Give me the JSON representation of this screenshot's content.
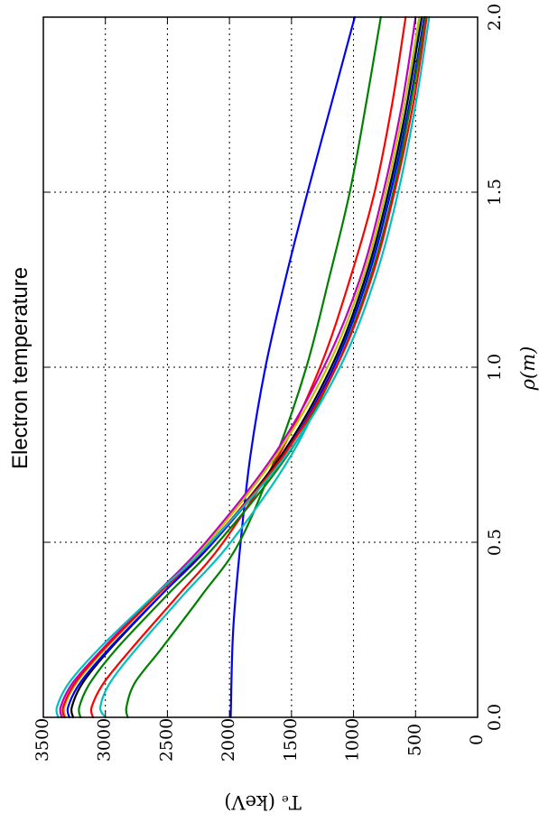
{
  "chart_data": {
    "type": "line",
    "title": "Electron temperature",
    "xlabel": "ρ(m)",
    "ylabel": "Tₑ (keV)",
    "xlim": [
      0.0,
      2.0
    ],
    "ylim": [
      0,
      3500
    ],
    "xticks": [
      "0.0",
      "0.5",
      "1.0",
      "1.5",
      "2.0"
    ],
    "yticks": [
      "0",
      "500",
      "1000",
      "1500",
      "2000",
      "2500",
      "3000",
      "3500"
    ],
    "grid": true,
    "orientation": "rotated 90° clockwise",
    "series": [
      {
        "color": "#0000ff",
        "x": [
          0.0,
          0.25,
          0.5,
          0.75,
          1.0,
          1.25,
          1.5,
          1.75,
          2.0
        ],
        "y": [
          1990,
          1970,
          1910,
          1830,
          1710,
          1550,
          1370,
          1180,
          990
        ]
      },
      {
        "color": "#008000",
        "x": [
          0.0,
          0.03,
          0.1,
          0.2,
          0.35,
          0.5,
          0.75,
          1.0,
          1.25,
          1.5,
          1.75,
          2.0
        ],
        "y": [
          2820,
          2830,
          2760,
          2540,
          2220,
          1920,
          1620,
          1380,
          1200,
          1030,
          900,
          780
        ]
      },
      {
        "color": "#ff0000",
        "x": [
          0.0,
          0.03,
          0.1,
          0.2,
          0.35,
          0.5,
          0.75,
          1.0,
          1.25,
          1.5,
          1.75,
          2.0
        ],
        "y": [
          3100,
          3110,
          3010,
          2780,
          2410,
          2050,
          1600,
          1270,
          1030,
          830,
          690,
          580
        ]
      },
      {
        "color": "#00bfbf",
        "x": [
          0.0,
          0.03,
          0.1,
          0.2,
          0.35,
          0.5,
          0.75,
          1.0,
          1.25,
          1.5,
          1.75,
          2.0
        ],
        "y": [
          3000,
          3040,
          2960,
          2740,
          2370,
          1990,
          1500,
          1160,
          900,
          710,
          570,
          470
        ]
      },
      {
        "color": "#bf00bf",
        "x": [
          0.0,
          0.03,
          0.1,
          0.2,
          0.35,
          0.5,
          0.75,
          1.0,
          1.25,
          1.5,
          1.75,
          2.0
        ],
        "y": [
          3350,
          3360,
          3260,
          3010,
          2600,
          2190,
          1640,
          1240,
          950,
          760,
          610,
          500
        ]
      },
      {
        "color": "#bfbf00",
        "x": [
          0.0,
          0.03,
          0.1,
          0.2,
          0.35,
          0.5,
          0.75,
          1.0,
          1.25,
          1.5,
          1.75,
          2.0
        ],
        "y": [
          3320,
          3330,
          3230,
          2990,
          2580,
          2170,
          1620,
          1210,
          930,
          740,
          590,
          470
        ]
      },
      {
        "color": "#000000",
        "x": [
          0.0,
          0.03,
          0.1,
          0.2,
          0.35,
          0.5,
          0.75,
          1.0,
          1.25,
          1.5,
          1.75,
          2.0
        ],
        "y": [
          3260,
          3270,
          3180,
          2950,
          2550,
          2140,
          1580,
          1180,
          910,
          720,
          570,
          450
        ]
      },
      {
        "color": "#0000ff",
        "x": [
          0.0,
          0.03,
          0.1,
          0.2,
          0.35,
          0.5,
          0.75,
          1.0,
          1.25,
          1.5,
          1.75,
          2.0
        ],
        "y": [
          3290,
          3300,
          3200,
          2960,
          2550,
          2130,
          1560,
          1160,
          890,
          700,
          550,
          430
        ]
      },
      {
        "color": "#008000",
        "x": [
          0.0,
          0.03,
          0.1,
          0.2,
          0.35,
          0.5,
          0.75,
          1.0,
          1.25,
          1.5,
          1.75,
          2.0
        ],
        "y": [
          3200,
          3210,
          3120,
          2900,
          2500,
          2090,
          1530,
          1140,
          870,
          680,
          540,
          420
        ]
      },
      {
        "color": "#ff0000",
        "x": [
          0.0,
          0.03,
          0.1,
          0.2,
          0.35,
          0.5,
          0.75,
          1.0,
          1.25,
          1.5,
          1.75,
          2.0
        ],
        "y": [
          3330,
          3340,
          3240,
          3000,
          2580,
          2150,
          1560,
          1140,
          860,
          670,
          520,
          410
        ]
      },
      {
        "color": "#00bfbf",
        "x": [
          0.0,
          0.03,
          0.1,
          0.2,
          0.35,
          0.5,
          0.75,
          1.0,
          1.25,
          1.5,
          1.75,
          2.0
        ],
        "y": [
          3380,
          3390,
          3290,
          3040,
          2600,
          2150,
          1540,
          1110,
          830,
          640,
          500,
          390
        ]
      }
    ]
  }
}
